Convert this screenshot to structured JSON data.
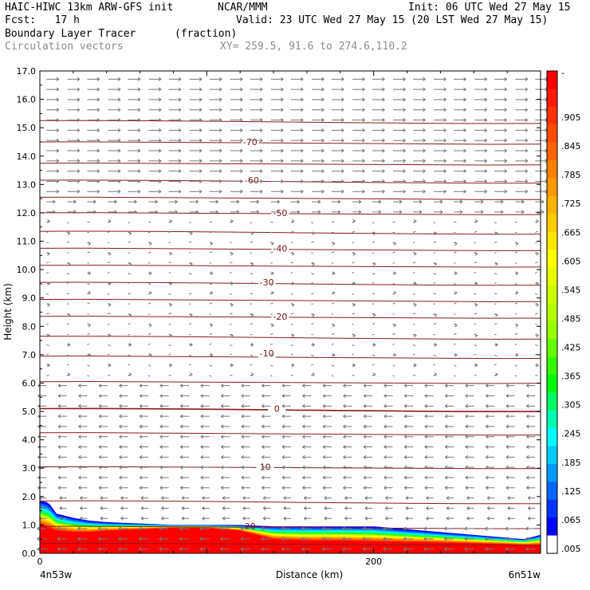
{
  "header": {
    "model": "HAIC-HIWC 13km ARW-GFS init",
    "org": "NCAR/MMM",
    "init": "Init: 06 UTC Wed 27 May 15",
    "fcst": "Fcst:   17 h",
    "valid": "Valid: 23 UTC Wed 27 May 15 (20 LST Wed 27 May 15)",
    "field": "Boundary Layer Tracer",
    "units": "(fraction)",
    "vectors": "Circulation vectors",
    "xy": "XY= 259.5, 91.6 to 274.6,110.2"
  },
  "chart_data": {
    "type": "heatmap",
    "title": "Boundary Layer Tracer",
    "xlabel": "Distance (km)",
    "ylabel": "Height (km)",
    "xlim": [
      0,
      300
    ],
    "ylim": [
      0,
      17
    ],
    "x_ticks": [
      "0",
      "200"
    ],
    "x_tick_values": [
      0,
      200
    ],
    "x_end_labels": [
      "4n53w",
      "6n51w"
    ],
    "y_ticks": [
      "0.0",
      "1.0",
      "2.0",
      "3.0",
      "4.0",
      "5.0",
      "6.0",
      "7.0",
      "8.0",
      "9.0",
      "10.0",
      "11.0",
      "12.0",
      "13.0",
      "14.0",
      "15.0",
      "16.0",
      "17.0"
    ],
    "y_tick_values": [
      0,
      1,
      2,
      3,
      4,
      5,
      6,
      7,
      8,
      9,
      10,
      11,
      12,
      13,
      14,
      15,
      16,
      17
    ],
    "colorbar": {
      "labels": [
        "-",
        ".905",
        ".845",
        ".785",
        ".725",
        ".665",
        ".605",
        ".545",
        ".485",
        ".425",
        ".365",
        ".305",
        ".245",
        ".185",
        ".125",
        ".065",
        ".005"
      ],
      "colors": [
        "#ff0000",
        "#ff1a00",
        "#ff3300",
        "#ff4d00",
        "#ff6600",
        "#ff8000",
        "#ff9900",
        "#ffb300",
        "#ffcc00",
        "#ffe600",
        "#ffff00",
        "#e6ff00",
        "#ccff00",
        "#b3ff00",
        "#99ff00",
        "#66ff00",
        "#33ff00",
        "#00ff00",
        "#00ff66",
        "#00ffb3",
        "#00ffff",
        "#00ccff",
        "#0099ff",
        "#0066ff",
        "#0033ff",
        "#0000ff",
        "#ffffff"
      ]
    },
    "tracer_profile": {
      "x": [
        0,
        5,
        10,
        20,
        30,
        40,
        60,
        80,
        100,
        120,
        140,
        160,
        180,
        200,
        220,
        240,
        260,
        280,
        290,
        300
      ],
      "top": [
        1.85,
        1.8,
        1.4,
        1.25,
        1.15,
        1.1,
        1.05,
        1.0,
        1.0,
        1.0,
        0.95,
        0.95,
        0.95,
        0.95,
        0.85,
        0.75,
        0.65,
        0.55,
        0.5,
        0.65
      ],
      "red_top": [
        1.0,
        0.9,
        0.8,
        0.75,
        0.75,
        0.8,
        0.85,
        0.9,
        0.9,
        0.8,
        0.5,
        0.45,
        0.45,
        0.42,
        0.4,
        0.38,
        0.35,
        0.32,
        0.3,
        0.3
      ]
    },
    "contours": [
      {
        "label": "20",
        "x": 126,
        "y": 0.95
      },
      {
        "label": "10",
        "x": 135,
        "y": 3.05
      },
      {
        "label": "0",
        "x": 142,
        "y": 5.1
      },
      {
        "label": "-10",
        "x": 136,
        "y": 7.05
      },
      {
        "label": "-20",
        "x": 144,
        "y": 8.35
      },
      {
        "label": "-30",
        "x": 136,
        "y": 9.55
      },
      {
        "label": "-40",
        "x": 144,
        "y": 10.75
      },
      {
        "label": "-50",
        "x": 144,
        "y": 12.0
      },
      {
        "label": "-60",
        "x": 127,
        "y": 13.15
      },
      {
        "label": "-70",
        "x": 126,
        "y": 14.5
      }
    ],
    "contour_levels": [
      0.35,
      0.95,
      1.85,
      3.05,
      4.25,
      5.1,
      6.05,
      6.95,
      7.65,
      8.35,
      8.95,
      9.55,
      10.15,
      10.75,
      11.35,
      12.0,
      12.55,
      13.15,
      13.75,
      14.5,
      15.25
    ]
  }
}
